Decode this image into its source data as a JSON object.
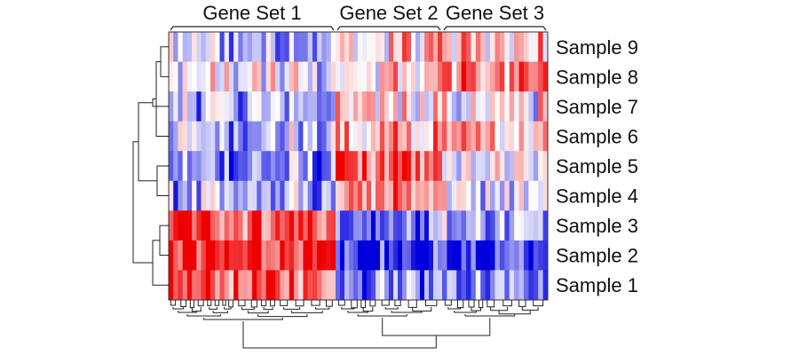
{
  "chart_data": {
    "type": "heatmap",
    "title": "",
    "column_groups": [
      {
        "label": "Gene Set 1",
        "n_genes": 36
      },
      {
        "label": "Gene Set 2",
        "n_genes": 24
      },
      {
        "label": "Gene Set 3",
        "n_genes": 22
      }
    ],
    "rows": [
      "Sample 9",
      "Sample 8",
      "Sample 7",
      "Sample 6",
      "Sample 5",
      "Sample 4",
      "Sample 3",
      "Sample 2",
      "Sample 1"
    ],
    "row_group_means": [
      [
        -0.3,
        0.3,
        0.2
      ],
      [
        -0.1,
        0.2,
        0.4
      ],
      [
        -0.3,
        0.2,
        0.0
      ],
      [
        -0.3,
        0.3,
        0.2
      ],
      [
        -0.5,
        0.8,
        0.0
      ],
      [
        -0.4,
        0.5,
        -0.1
      ],
      [
        0.7,
        -0.6,
        -0.4
      ],
      [
        0.8,
        -0.8,
        -0.7
      ],
      [
        0.6,
        -0.5,
        -0.5
      ]
    ],
    "value_range": [
      -1,
      1
    ],
    "colors": {
      "low": "#0000dd",
      "mid": "#ffffff",
      "high": "#ee0000",
      "border": "#333333"
    },
    "row_dendrogram": true,
    "column_dendrogram": true,
    "legend": "none"
  }
}
